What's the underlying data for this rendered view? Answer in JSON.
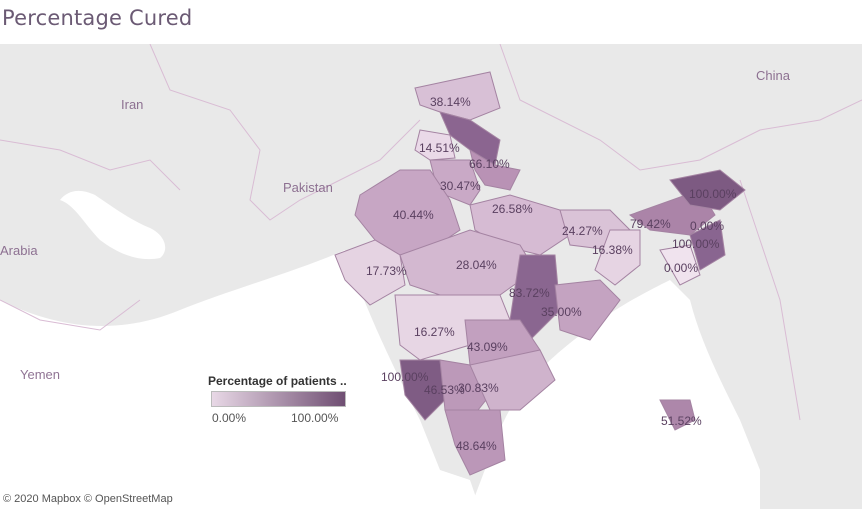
{
  "title": "Percentage Cured",
  "colors": {
    "low": "#e8d8e6",
    "high": "#6f4e72",
    "border": "#b28fb0",
    "land": "#ededed",
    "water": "#ffffff"
  },
  "countries": [
    {
      "name": "Iran"
    },
    {
      "name": "Pakistan"
    },
    {
      "name": "China"
    },
    {
      "name": "Arabia"
    },
    {
      "name": "Yemen"
    }
  ],
  "state_values": [
    {
      "label": "38.14%",
      "value": 38.14
    },
    {
      "label": "14.51%",
      "value": 14.51
    },
    {
      "label": "66.10%",
      "value": 66.1
    },
    {
      "label": "30.47%",
      "value": 30.47
    },
    {
      "label": "40.44%",
      "value": 40.44
    },
    {
      "label": "26.58%",
      "value": 26.58
    },
    {
      "label": "24.27%",
      "value": 24.27
    },
    {
      "label": "16.38%",
      "value": 16.38
    },
    {
      "label": "79.42%",
      "value": 79.42
    },
    {
      "label": "100.00%",
      "value": 100.0
    },
    {
      "label": "0.00%",
      "value": 0.0
    },
    {
      "label": "100.00%",
      "value": 100.0
    },
    {
      "label": "0.00%",
      "value": 0.0
    },
    {
      "label": "17.73%",
      "value": 17.73
    },
    {
      "label": "28.04%",
      "value": 28.04
    },
    {
      "label": "83.72%",
      "value": 83.72
    },
    {
      "label": "35.00%",
      "value": 35.0
    },
    {
      "label": "16.27%",
      "value": 16.27
    },
    {
      "label": "43.09%",
      "value": 43.09
    },
    {
      "label": "100.00%",
      "value": 100.0
    },
    {
      "label": "46.53%",
      "value": 46.53
    },
    {
      "label": "30.83%",
      "value": 30.83
    },
    {
      "label": "48.64%",
      "value": 48.64
    },
    {
      "label": "51.52%",
      "value": 51.52
    }
  ],
  "legend": {
    "title": "Percentage of patients ..",
    "min": "0.00%",
    "max": "100.00%"
  },
  "attribution": "© 2020 Mapbox © OpenStreetMap"
}
